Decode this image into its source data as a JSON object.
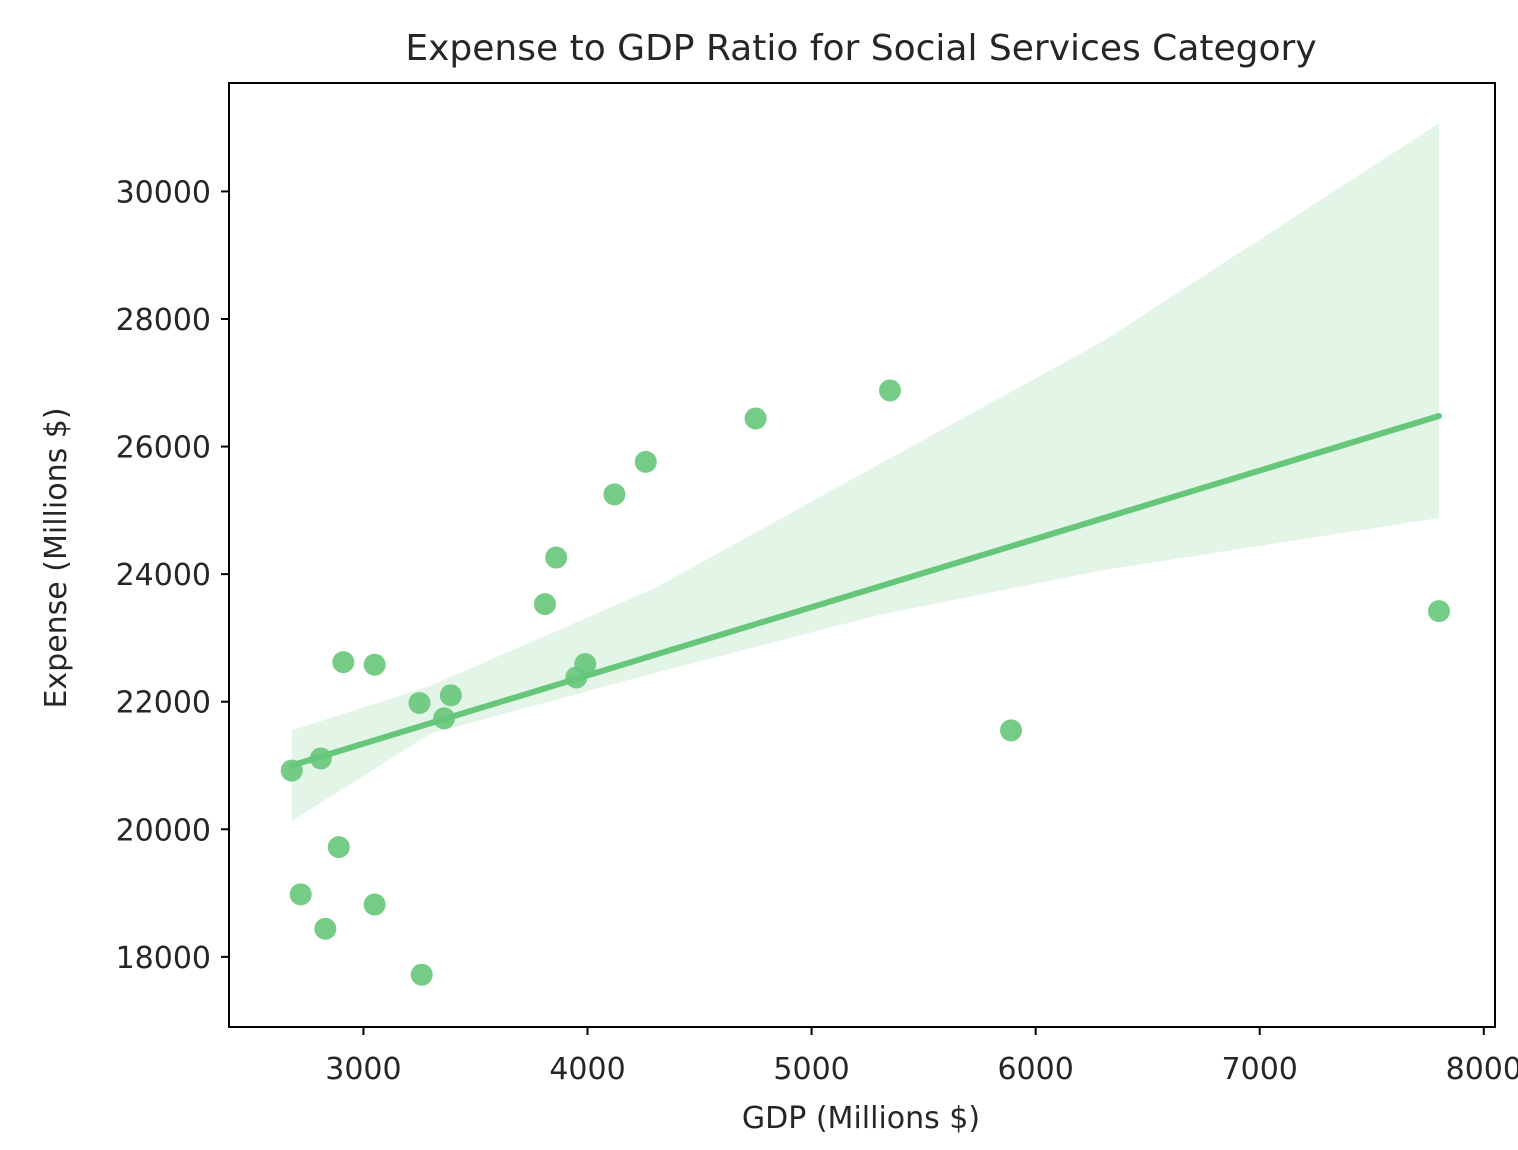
{
  "chart_data": {
    "type": "scatter",
    "title": "Expense to GDP Ratio for Social Services Category",
    "xlabel": "GDP (Millions $)",
    "ylabel": "Expense (Millions $)",
    "xlim": [
      2400,
      8050
    ],
    "ylim": [
      16900,
      31700
    ],
    "xticks": [
      3000,
      4000,
      5000,
      6000,
      7000,
      8000
    ],
    "xtick_labels": [
      "3000",
      "4000",
      "5000",
      "6000",
      "7000",
      "8000"
    ],
    "yticks": [
      18000,
      20000,
      22000,
      24000,
      26000,
      28000,
      30000
    ],
    "ytick_labels": [
      "18000",
      "20000",
      "22000",
      "24000",
      "26000",
      "28000",
      "30000"
    ],
    "grid": false,
    "color": "#66c67a",
    "points": [
      {
        "x": 2680,
        "y": 20920
      },
      {
        "x": 2720,
        "y": 18980
      },
      {
        "x": 2810,
        "y": 21110
      },
      {
        "x": 2830,
        "y": 18440
      },
      {
        "x": 2890,
        "y": 19720
      },
      {
        "x": 2910,
        "y": 22620
      },
      {
        "x": 3050,
        "y": 22580
      },
      {
        "x": 3050,
        "y": 18820
      },
      {
        "x": 3250,
        "y": 21980
      },
      {
        "x": 3260,
        "y": 17720
      },
      {
        "x": 3360,
        "y": 21740
      },
      {
        "x": 3390,
        "y": 22100
      },
      {
        "x": 3810,
        "y": 23530
      },
      {
        "x": 3860,
        "y": 24260
      },
      {
        "x": 3950,
        "y": 22380
      },
      {
        "x": 3990,
        "y": 22590
      },
      {
        "x": 4120,
        "y": 25250
      },
      {
        "x": 4260,
        "y": 25760
      },
      {
        "x": 4750,
        "y": 26440
      },
      {
        "x": 5350,
        "y": 26880
      },
      {
        "x": 5890,
        "y": 21550
      },
      {
        "x": 7800,
        "y": 23420
      }
    ],
    "regression": {
      "x": [
        2680,
        7800
      ],
      "y": [
        21000,
        26480
      ]
    },
    "confidence_band": {
      "x": [
        2680,
        3300,
        4300,
        5300,
        6300,
        7800
      ],
      "upper": [
        21550,
        22250,
        23780,
        25720,
        27650,
        31070
      ],
      "lower": [
        20130,
        21500,
        22450,
        23360,
        24060,
        24880
      ]
    }
  }
}
